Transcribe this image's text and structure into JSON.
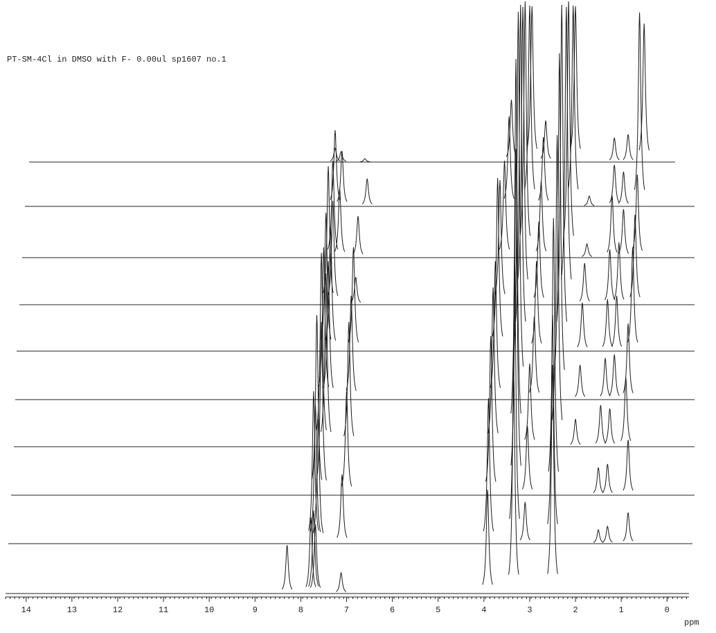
{
  "chart_data": {
    "type": "nmr-stack",
    "title": "PT-SM-4Cl in DMSO with F- 0.00ul sp1607 no.1",
    "xlabel": "ppm",
    "xlim": [
      14.45,
      -0.48
    ],
    "xticks": [
      14,
      13,
      12,
      11,
      10,
      9,
      8,
      7,
      6,
      5,
      4,
      3,
      2,
      1,
      0
    ],
    "color": "#1a1a1a",
    "series": [
      {
        "x": [
          8.3,
          7.78,
          7.72,
          7.68,
          7.12,
          3.92,
          3.35,
          2.5
        ],
        "values": [
          70,
          110,
          120,
          100,
          30,
          150,
          320,
          330
        ]
      },
      {
        "x": [
          7.72,
          7.68,
          7.62,
          7.1,
          3.9,
          3.33,
          3.1,
          2.5,
          1.5,
          1.3,
          0.85
        ],
        "values": [
          220,
          200,
          180,
          100,
          210,
          420,
          60,
          330,
          20,
          25,
          45
        ]
      },
      {
        "x": [
          7.65,
          7.55,
          7.0,
          3.85,
          3.3,
          3.05,
          2.48,
          1.5,
          1.3,
          0.85
        ],
        "values": [
          260,
          250,
          150,
          230,
          500,
          100,
          400,
          40,
          45,
          80
        ]
      },
      {
        "x": [
          7.55,
          7.45,
          6.95,
          3.8,
          3.3,
          3.0,
          2.4,
          2.0,
          1.45,
          1.25,
          0.9
        ],
        "values": [
          280,
          250,
          180,
          230,
          560,
          120,
          450,
          40,
          60,
          55,
          100
        ]
      },
      {
        "x": [
          7.5,
          7.4,
          6.9,
          3.75,
          3.25,
          2.9,
          2.35,
          1.9,
          1.35,
          1.15,
          0.85
        ],
        "values": [
          220,
          200,
          150,
          200,
          560,
          120,
          500,
          50,
          60,
          65,
          110
        ]
      },
      {
        "x": [
          7.45,
          7.35,
          6.85,
          3.7,
          3.2,
          2.85,
          2.3,
          1.85,
          1.3,
          1.1,
          0.75
        ],
        "values": [
          200,
          180,
          150,
          250,
          500,
          130,
          500,
          70,
          75,
          80,
          150
        ]
      },
      {
        "x": [
          7.4,
          7.3,
          6.8,
          3.65,
          3.15,
          2.8,
          2.2,
          1.8,
          1.25,
          1.05,
          0.7
        ],
        "values": [
          200,
          150,
          40,
          180,
          430,
          120,
          430,
          60,
          80,
          90,
          130
        ]
      },
      {
        "x": [
          7.3,
          7.15,
          6.75,
          3.55,
          3.1,
          2.75,
          2.15,
          1.75,
          1.2,
          0.95,
          0.65
        ],
        "values": [
          140,
          100,
          60,
          140,
          370,
          110,
          370,
          20,
          90,
          70,
          120
        ]
      },
      {
        "x": [
          7.25,
          7.1,
          6.55,
          3.45,
          3.0,
          2.7,
          2.05,
          1.7,
          1.15,
          0.95,
          0.6
        ],
        "values": [
          110,
          80,
          40,
          130,
          290,
          100,
          290,
          15,
          60,
          50,
          280
        ]
      },
      {
        "x": [
          7.25,
          7.12,
          6.6,
          3.4,
          2.95,
          2.65,
          2.0,
          1.15,
          0.85,
          0.5
        ],
        "values": [
          20,
          15,
          5,
          90,
          225,
          60,
          225,
          35,
          40,
          200
        ]
      }
    ]
  }
}
